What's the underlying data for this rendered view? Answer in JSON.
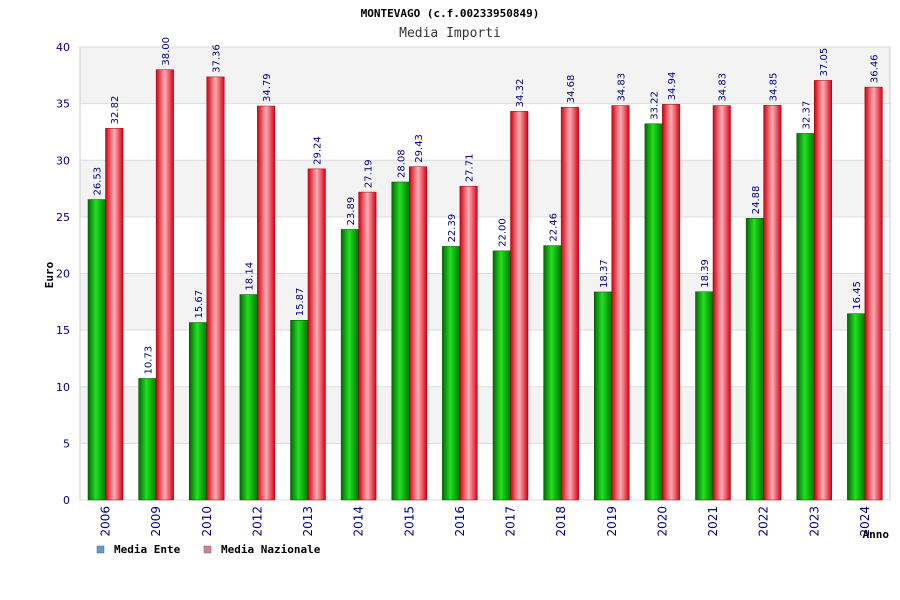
{
  "chart_data": {
    "type": "bar",
    "title": "MONTEVAGO (c.f.00233950849)",
    "subtitle": "Media Importi",
    "xlabel": "Anno",
    "ylabel": "Euro",
    "ylim": [
      0,
      40
    ],
    "yticks": [
      "0",
      "5",
      "10",
      "15",
      "20",
      "25",
      "30",
      "35",
      "40"
    ],
    "categories": [
      "2006",
      "2009",
      "2010",
      "2012",
      "2013",
      "2014",
      "2015",
      "2016",
      "2017",
      "2018",
      "2019",
      "2020",
      "2021",
      "2022",
      "2023",
      "2024"
    ],
    "series": [
      {
        "name": "Media Ente",
        "color": "#00b000",
        "legend_color": "#5b9bd5",
        "values": [
          26.53,
          10.73,
          15.67,
          18.14,
          15.87,
          23.89,
          28.08,
          22.39,
          22.0,
          22.46,
          18.37,
          33.22,
          18.39,
          24.88,
          32.37,
          16.45
        ],
        "labels": [
          "26.53",
          "10.73",
          "15.67",
          "18.14",
          "15.87",
          "23.89",
          "28.08",
          "22.39",
          "22.00",
          "22.46",
          "18.37",
          "33.22",
          "18.39",
          "24.88",
          "32.37",
          "16.45"
        ]
      },
      {
        "name": "Media Nazionale",
        "color": "#e8101a",
        "legend_color": "#d080a0",
        "values": [
          32.82,
          38.0,
          37.36,
          34.79,
          29.24,
          27.19,
          29.43,
          27.71,
          34.32,
          34.68,
          34.83,
          34.94,
          34.83,
          34.85,
          37.05,
          36.46
        ],
        "labels": [
          "32.82",
          "38.00",
          "37.36",
          "34.79",
          "29.24",
          "27.19",
          "29.43",
          "27.71",
          "34.32",
          "34.68",
          "34.83",
          "34.94",
          "34.83",
          "34.85",
          "37.05",
          "36.46"
        ]
      }
    ],
    "grid": true,
    "legend_position": "bottom-left"
  }
}
